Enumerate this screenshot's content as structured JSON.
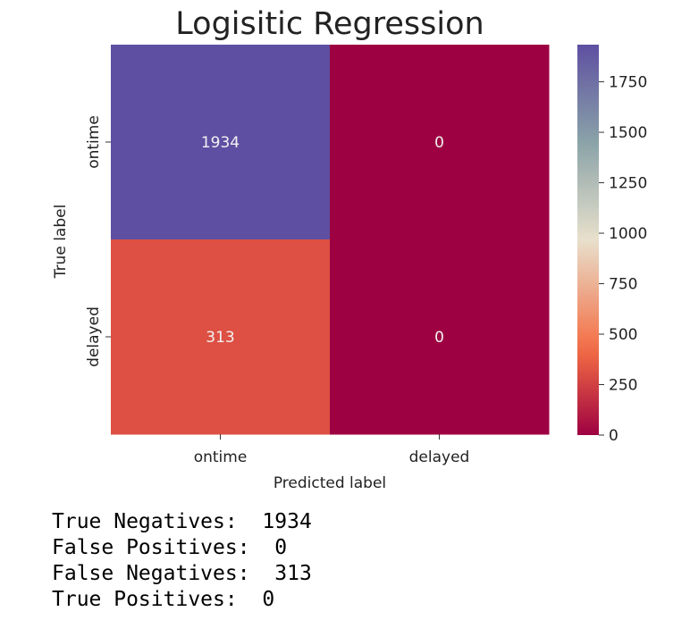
{
  "chart_data": {
    "type": "heatmap",
    "title": "Logisitic Regression",
    "xlabel": "Predicted label",
    "ylabel": "True label",
    "x_categories": [
      "ontime",
      "delayed"
    ],
    "y_categories": [
      "ontime",
      "delayed"
    ],
    "values": [
      [
        1934,
        0
      ],
      [
        313,
        0
      ]
    ],
    "cell_labels": [
      [
        "1934",
        "0"
      ],
      [
        "313",
        "0"
      ]
    ],
    "colormap": "Spectral",
    "vmin": 0,
    "vmax": 1934,
    "colorbar_ticks": [
      0,
      250,
      500,
      750,
      1000,
      1250,
      1500,
      1750
    ],
    "colorbar_tick_labels": [
      "0",
      "250",
      "500",
      "750",
      "1000",
      "1250",
      "1500",
      "1750"
    ],
    "colors": {
      "low": "#9e0142",
      "mid": "#f46d43",
      "center": "#e8e0cc",
      "upper": "#8aa3a8",
      "high": "#5e4fa2"
    }
  },
  "stats": [
    {
      "label": "True Negatives:",
      "value": "1934"
    },
    {
      "label": "False Positives:",
      "value": "0"
    },
    {
      "label": "False Negatives:",
      "value": "313"
    },
    {
      "label": "True Positives:",
      "value": "0"
    }
  ]
}
